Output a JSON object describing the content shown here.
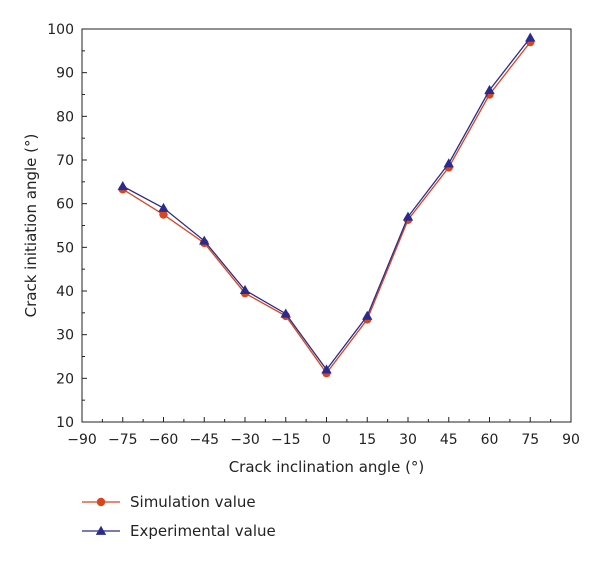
{
  "chart_data": {
    "type": "line",
    "title": "",
    "xlabel": "Crack inclination angle (°)",
    "ylabel": "Crack initiation angle (°)",
    "xlim": [
      -90,
      90
    ],
    "ylim": [
      10,
      100
    ],
    "xticks": [
      -90,
      -75,
      -60,
      -45,
      -30,
      -15,
      0,
      15,
      30,
      45,
      60,
      75,
      90
    ],
    "xtick_labels": [
      "−90",
      "−75",
      "−60",
      "−45",
      "−30",
      "−15",
      "0",
      "15",
      "30",
      "45",
      "60",
      "75",
      "90"
    ],
    "yticks": [
      10,
      20,
      30,
      40,
      50,
      60,
      70,
      80,
      90,
      100
    ],
    "ytick_labels": [
      "10",
      "20",
      "30",
      "40",
      "50",
      "60",
      "70",
      "80",
      "90",
      "100"
    ],
    "grid": false,
    "legend_position": "below",
    "x": [
      -75,
      -60,
      -45,
      -30,
      -15,
      0,
      15,
      30,
      45,
      60,
      75
    ],
    "series": [
      {
        "name": "Simulation value",
        "marker": "circle",
        "color": "#d9451c",
        "values": [
          63.3,
          57.5,
          51.0,
          39.5,
          34.3,
          21.2,
          33.5,
          56.3,
          68.3,
          85.0,
          97.0
        ]
      },
      {
        "name": "Experimental value",
        "marker": "triangle",
        "color": "#2b2b8f",
        "values": [
          64.0,
          59.0,
          51.5,
          40.2,
          34.8,
          22.0,
          34.3,
          57.0,
          69.2,
          86.0,
          98.0
        ]
      }
    ]
  }
}
